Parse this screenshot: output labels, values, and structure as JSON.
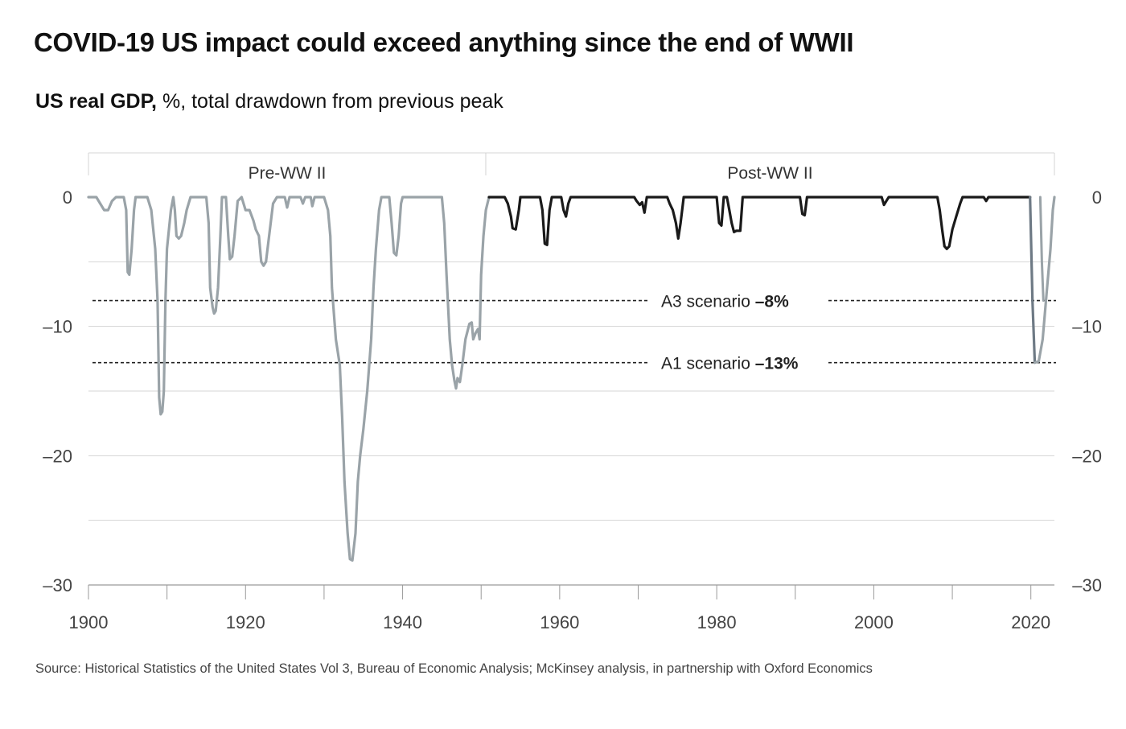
{
  "header": {
    "title": "COVID-19 US impact could exceed anything since the end of WWII",
    "subtitle_bold": "US real GDP,",
    "subtitle_rest": " %, total drawdown from previous peak"
  },
  "footer": {
    "source": "Source: Historical Statistics of the United States Vol 3, Bureau of Economic Analysis; McKinsey analysis, in partnership with Oxford Economics"
  },
  "colors": {
    "pre_ww2_series": "#9aa3a8",
    "post_ww2_series": "#1a1a1a",
    "covid_projection": "#9aa3a8",
    "covid_drop": "#6e7a85",
    "gridline": "#d4d4d4",
    "axis": "#9a9a9a",
    "scenario_line": "#222222"
  },
  "chart_data": {
    "type": "line",
    "xlim": [
      1900,
      2023
    ],
    "ylim": [
      -30,
      0
    ],
    "x_ticks": [
      1900,
      1920,
      1940,
      1960,
      1980,
      2000,
      2020
    ],
    "x_tick_labels": [
      "1900",
      "1920",
      "1940",
      "1960",
      "1980",
      "2000",
      "2020"
    ],
    "y_ticks": [
      0,
      -10,
      -20,
      -30
    ],
    "y_tick_labels": [
      "0",
      "–10",
      "–20",
      "–30"
    ],
    "y_gridlines": [
      0,
      -5,
      -10,
      -15,
      -20,
      -25,
      -30
    ],
    "grid": true,
    "y_axis_both_sides": true,
    "eras": [
      {
        "label": "Pre-WW II",
        "x_start": 1900,
        "x_end": 1951
      },
      {
        "label": "Post-WW II",
        "x_start": 1951,
        "x_end": 2023
      }
    ],
    "reference_lines": [
      {
        "name": "A3 scenario",
        "value_label": "–8%",
        "y": -8
      },
      {
        "name": "A1 scenario",
        "value_label": "–13%",
        "y": -12.8
      }
    ],
    "series": [
      {
        "segment": "pre-ww2",
        "points": [
          [
            1900,
            0
          ],
          [
            1901,
            0
          ],
          [
            1901.5,
            -0.5
          ],
          [
            1902,
            -1
          ],
          [
            1902.5,
            -1
          ],
          [
            1903,
            -0.3
          ],
          [
            1903.5,
            0
          ],
          [
            1904.5,
            0
          ],
          [
            1904.8,
            -1
          ],
          [
            1905,
            -5.8
          ],
          [
            1905.2,
            -6
          ],
          [
            1905.5,
            -4
          ],
          [
            1905.8,
            -1
          ],
          [
            1906,
            0
          ],
          [
            1907.5,
            0
          ],
          [
            1908,
            -1
          ],
          [
            1908.5,
            -4
          ],
          [
            1908.8,
            -8
          ],
          [
            1909,
            -15.5
          ],
          [
            1909.2,
            -16.8
          ],
          [
            1909.4,
            -16.6
          ],
          [
            1909.6,
            -15
          ],
          [
            1909.8,
            -8
          ],
          [
            1910,
            -4
          ],
          [
            1910.5,
            -1
          ],
          [
            1910.8,
            0
          ],
          [
            1911,
            -1
          ],
          [
            1911.2,
            -3
          ],
          [
            1911.5,
            -3.2
          ],
          [
            1911.8,
            -3
          ],
          [
            1912.2,
            -2
          ],
          [
            1912.5,
            -1
          ],
          [
            1913,
            0
          ],
          [
            1915,
            0
          ],
          [
            1915.3,
            -2
          ],
          [
            1915.5,
            -7
          ],
          [
            1915.8,
            -8.5
          ],
          [
            1916,
            -9
          ],
          [
            1916.2,
            -8.8
          ],
          [
            1916.5,
            -7
          ],
          [
            1916.8,
            -3
          ],
          [
            1917,
            0
          ],
          [
            1917.5,
            0
          ],
          [
            1917.8,
            -3
          ],
          [
            1918,
            -4.8
          ],
          [
            1918.3,
            -4.6
          ],
          [
            1918.6,
            -3
          ],
          [
            1919,
            -0.3
          ],
          [
            1919.5,
            0
          ],
          [
            1920,
            -1
          ],
          [
            1920.5,
            -1
          ],
          [
            1921,
            -1.8
          ],
          [
            1921.3,
            -2.5
          ],
          [
            1921.7,
            -3
          ],
          [
            1922,
            -5
          ],
          [
            1922.3,
            -5.3
          ],
          [
            1922.6,
            -5
          ],
          [
            1923,
            -3
          ],
          [
            1923.5,
            -0.5
          ],
          [
            1924,
            0
          ],
          [
            1925,
            0
          ],
          [
            1925.3,
            -0.8
          ],
          [
            1925.6,
            0
          ],
          [
            1927,
            0
          ],
          [
            1927.3,
            -0.5
          ],
          [
            1927.6,
            0
          ],
          [
            1928.3,
            0
          ],
          [
            1928.5,
            -0.7
          ],
          [
            1928.8,
            0
          ],
          [
            1930,
            0
          ],
          [
            1930.5,
            -1
          ],
          [
            1930.8,
            -3
          ],
          [
            1931,
            -7
          ],
          [
            1931.5,
            -11
          ],
          [
            1932,
            -13
          ],
          [
            1932.3,
            -17
          ],
          [
            1932.6,
            -22
          ],
          [
            1933,
            -26
          ],
          [
            1933.3,
            -28
          ],
          [
            1933.6,
            -28.1
          ],
          [
            1934,
            -26
          ],
          [
            1934.3,
            -22
          ],
          [
            1934.6,
            -20
          ],
          [
            1935,
            -18
          ],
          [
            1935.5,
            -15
          ],
          [
            1936,
            -11
          ],
          [
            1936.3,
            -7
          ],
          [
            1936.6,
            -4
          ],
          [
            1937,
            -1
          ],
          [
            1937.3,
            0
          ],
          [
            1938.3,
            0
          ],
          [
            1938.6,
            -2
          ],
          [
            1938.9,
            -4.3
          ],
          [
            1939.2,
            -4.5
          ],
          [
            1939.5,
            -3
          ],
          [
            1939.8,
            -0.5
          ],
          [
            1940,
            0
          ],
          [
            1945,
            0
          ],
          [
            1945.3,
            -2
          ],
          [
            1945.6,
            -6
          ],
          [
            1946,
            -11
          ],
          [
            1946.3,
            -13
          ],
          [
            1946.6,
            -14.2
          ],
          [
            1946.8,
            -14.8
          ],
          [
            1947,
            -14
          ],
          [
            1947.3,
            -14.3
          ],
          [
            1947.6,
            -13
          ],
          [
            1948,
            -11
          ],
          [
            1948.5,
            -9.8
          ],
          [
            1948.8,
            -9.7
          ],
          [
            1949,
            -11
          ],
          [
            1949.3,
            -10.5
          ],
          [
            1949.6,
            -10.2
          ],
          [
            1949.8,
            -11
          ],
          [
            1950,
            -6
          ],
          [
            1950.3,
            -3
          ],
          [
            1950.6,
            -1
          ],
          [
            1951,
            0
          ]
        ]
      },
      {
        "segment": "post-ww2",
        "points": [
          [
            1951,
            0
          ],
          [
            1953,
            0
          ],
          [
            1953.4,
            -0.5
          ],
          [
            1953.8,
            -1.5
          ],
          [
            1954,
            -2.4
          ],
          [
            1954.4,
            -2.5
          ],
          [
            1954.8,
            -1
          ],
          [
            1955,
            0
          ],
          [
            1957.5,
            0
          ],
          [
            1957.8,
            -1
          ],
          [
            1958.1,
            -3.6
          ],
          [
            1958.4,
            -3.7
          ],
          [
            1958.7,
            -1
          ],
          [
            1959,
            0
          ],
          [
            1960.2,
            0
          ],
          [
            1960.5,
            -1
          ],
          [
            1960.8,
            -1.5
          ],
          [
            1961.1,
            -0.5
          ],
          [
            1961.4,
            0
          ],
          [
            1969.5,
            0
          ],
          [
            1969.8,
            -0.3
          ],
          [
            1970.2,
            -0.6
          ],
          [
            1970.5,
            -0.4
          ],
          [
            1970.8,
            -1.2
          ],
          [
            1971.1,
            0
          ],
          [
            1973.7,
            0
          ],
          [
            1974,
            -0.5
          ],
          [
            1974.4,
            -1
          ],
          [
            1974.8,
            -2
          ],
          [
            1975.1,
            -3.2
          ],
          [
            1975.4,
            -2
          ],
          [
            1975.8,
            0
          ],
          [
            1980,
            0
          ],
          [
            1980.3,
            -2
          ],
          [
            1980.6,
            -2.2
          ],
          [
            1980.9,
            0
          ],
          [
            1981.3,
            0
          ],
          [
            1981.6,
            -1
          ],
          [
            1981.9,
            -2
          ],
          [
            1982.2,
            -2.7
          ],
          [
            1982.5,
            -2.6
          ],
          [
            1983,
            -2.6
          ],
          [
            1983.3,
            0
          ],
          [
            1990.6,
            0
          ],
          [
            1990.9,
            -1.3
          ],
          [
            1991.2,
            -1.4
          ],
          [
            1991.5,
            0
          ],
          [
            2001,
            0
          ],
          [
            2001.3,
            -0.6
          ],
          [
            2001.6,
            -0.3
          ],
          [
            2001.9,
            0
          ],
          [
            2008.1,
            0
          ],
          [
            2008.4,
            -1
          ],
          [
            2008.7,
            -2.5
          ],
          [
            2009,
            -3.8
          ],
          [
            2009.3,
            -4
          ],
          [
            2009.6,
            -3.8
          ],
          [
            2010,
            -2.5
          ],
          [
            2010.5,
            -1.5
          ],
          [
            2011,
            -0.5
          ],
          [
            2011.3,
            0
          ],
          [
            2014,
            0
          ],
          [
            2014.3,
            -0.3
          ],
          [
            2014.6,
            0
          ],
          [
            2019.9,
            0
          ]
        ]
      },
      {
        "segment": "covid-drop",
        "points": [
          [
            2019.9,
            0
          ],
          [
            2020.2,
            -8
          ],
          [
            2020.5,
            -12.8
          ]
        ]
      },
      {
        "segment": "covid-a3-recovery",
        "points": [
          [
            2021.2,
            0
          ],
          [
            2021.4,
            -5
          ],
          [
            2021.6,
            -8
          ]
        ]
      },
      {
        "segment": "covid-a1-recovery",
        "points": [
          [
            2020.5,
            -12.8
          ],
          [
            2021,
            -12.7
          ],
          [
            2021.5,
            -11
          ],
          [
            2022,
            -7.5
          ],
          [
            2022.5,
            -4
          ],
          [
            2022.8,
            -1
          ],
          [
            2023,
            0
          ]
        ]
      }
    ]
  }
}
